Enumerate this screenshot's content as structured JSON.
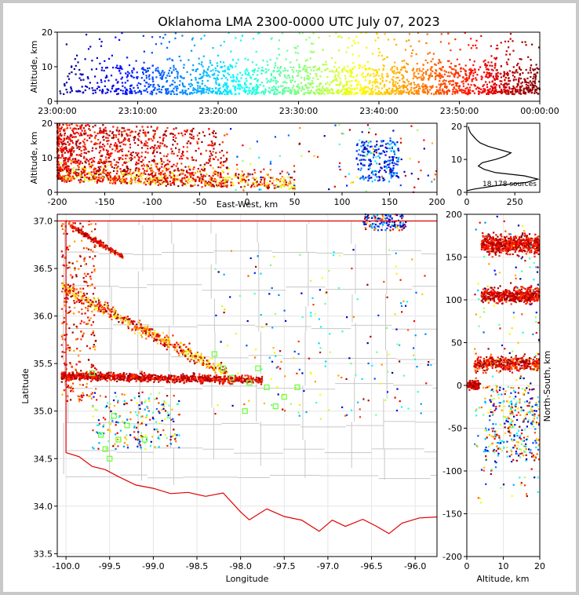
{
  "chart_data": {
    "type": "scatter",
    "title": "Oklahoma LMA 2300-0000 UTC July 07, 2023",
    "source_count_label": "18,178 sources",
    "panels": {
      "time_altitude": {
        "xlabel": "",
        "ylabel": "Altitude, km",
        "xticks": [
          "23:00:00",
          "23:10:00",
          "23:20:00",
          "23:30:00",
          "23:40:00",
          "23:50:00",
          "00:00:00"
        ],
        "ylim": [
          0,
          20
        ],
        "yticks": [
          0,
          10,
          20
        ]
      },
      "eastwest_altitude": {
        "xlabel": "East-West, km",
        "ylabel": "Altitude, km",
        "xlim": [
          -200,
          200
        ],
        "xticks": [
          -200,
          -150,
          -100,
          -50,
          0,
          50,
          100,
          150,
          200
        ],
        "ylim": [
          0,
          20
        ],
        "yticks": [
          0,
          10,
          20
        ]
      },
      "altitude_histogram": {
        "xlabel": "",
        "ylabel": "",
        "xlim": [
          0,
          380
        ],
        "xticks": [
          0,
          250
        ],
        "ylim": [
          0,
          21
        ],
        "yticks": [
          0,
          10,
          20
        ],
        "profile": [
          [
            0,
            0.5
          ],
          [
            40,
            1
          ],
          [
            150,
            2
          ],
          [
            310,
            3
          ],
          [
            370,
            4
          ],
          [
            300,
            5
          ],
          [
            150,
            6
          ],
          [
            90,
            7
          ],
          [
            60,
            8
          ],
          [
            80,
            9
          ],
          [
            150,
            10
          ],
          [
            200,
            11
          ],
          [
            230,
            12
          ],
          [
            170,
            13
          ],
          [
            110,
            14
          ],
          [
            70,
            15
          ],
          [
            50,
            16
          ],
          [
            35,
            17
          ],
          [
            20,
            18
          ],
          [
            12,
            19
          ],
          [
            8,
            20
          ]
        ]
      },
      "plan_view": {
        "xlabel": "Longitude",
        "ylabel": "Latitude",
        "xlim": [
          -100.1,
          -95.75
        ],
        "xticks": [
          -100.0,
          -99.5,
          -99.0,
          -98.5,
          -98.0,
          -97.5,
          -97.0,
          -96.5,
          -96.0
        ],
        "ylim": [
          33.47,
          37.07
        ],
        "yticks": [
          33.5,
          34.0,
          34.5,
          35.0,
          35.5,
          36.0,
          36.5,
          37.0
        ],
        "station_markers": [
          [
            -98.2,
            35.45
          ],
          [
            -98.1,
            35.35
          ],
          [
            -97.9,
            35.3
          ],
          [
            -97.8,
            35.45
          ],
          [
            -97.7,
            35.25
          ],
          [
            -97.5,
            35.15
          ],
          [
            -97.35,
            35.25
          ],
          [
            -97.95,
            35.0
          ],
          [
            -99.5,
            34.5
          ],
          [
            -99.55,
            34.6
          ],
          [
            -99.4,
            34.7
          ],
          [
            -99.6,
            34.75
          ],
          [
            -99.3,
            34.85
          ],
          [
            -99.45,
            34.95
          ],
          [
            -99.1,
            34.7
          ],
          [
            -99.7,
            35.4
          ],
          [
            -98.3,
            35.6
          ],
          [
            -97.6,
            35.05
          ]
        ]
      },
      "altitude_northsouth": {
        "xlabel": "Altitude, km",
        "ylabel": "North-South, km",
        "xlim": [
          0,
          20
        ],
        "xticks": [
          0,
          10,
          20
        ],
        "ylim": [
          -200,
          200
        ],
        "yticks": [
          -200,
          -150,
          -100,
          -50,
          0,
          50,
          100,
          150,
          200
        ]
      }
    }
  }
}
